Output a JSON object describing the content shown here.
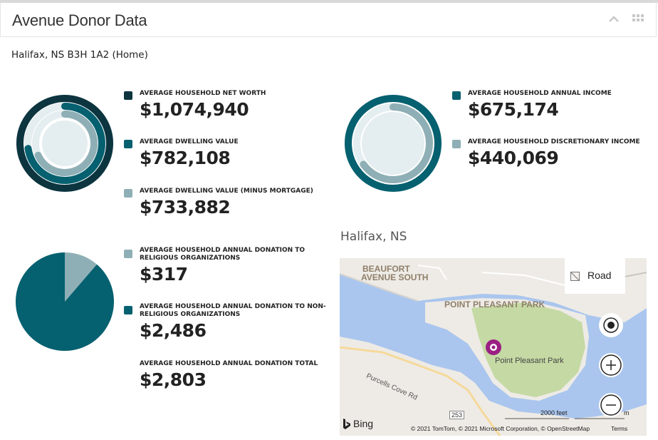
{
  "header": {
    "title": "Avenue Donor Data",
    "collapse_icon": "chevron-up-icon",
    "grid_icon": "grid-icon"
  },
  "address": "Halifax, NS B3H 1A2 (Home)",
  "colors": {
    "dark_teal": "#0c3540",
    "teal": "#05606f",
    "light_teal": "#8fafb6",
    "pale": "#e4edef"
  },
  "wealth": {
    "net_worth": {
      "label": "AVERAGE HOUSEHOLD NET WORTH",
      "value": "$1,074,940"
    },
    "dwelling": {
      "label": "AVERAGE DWELLING VALUE",
      "value": "$782,108"
    },
    "dwelling_minus": {
      "label": "AVERAGE DWELLING VALUE (MINUS MORTGAGE)",
      "value": "$733,882"
    }
  },
  "income": {
    "annual": {
      "label": "AVERAGE HOUSEHOLD ANNUAL INCOME",
      "value": "$675,174"
    },
    "discretionary": {
      "label": "AVERAGE HOUSEHOLD DISCRETIONARY INCOME",
      "value": "$440,069"
    }
  },
  "donations": {
    "religious": {
      "label_line1": "AVERAGE HOUSEHOLD ANNUAL DONATION TO",
      "label_line2": "RELIGIOUS ORGANIZATIONS",
      "value": "$317"
    },
    "non_religious": {
      "label_line1": "AVERAGE HOUSEHOLD ANNUAL DONATION TO NON-",
      "label_line2": "RELIGIOUS ORGANIZATIONS",
      "value": "$2,486"
    },
    "total": {
      "label": "AVERAGE HOUSEHOLD ANNUAL DONATION TOTAL",
      "value": "$2,803"
    }
  },
  "chart_data": [
    {
      "type": "radial-bar",
      "series": [
        {
          "name": "AVERAGE HOUSEHOLD NET WORTH",
          "value": 1074940
        },
        {
          "name": "AVERAGE DWELLING VALUE",
          "value": 782108
        },
        {
          "name": "AVERAGE DWELLING VALUE (MINUS MORTGAGE)",
          "value": 733882
        }
      ],
      "max": 1074940
    },
    {
      "type": "radial-bar",
      "series": [
        {
          "name": "AVERAGE HOUSEHOLD ANNUAL INCOME",
          "value": 675174
        },
        {
          "name": "AVERAGE HOUSEHOLD DISCRETIONARY INCOME",
          "value": 440069
        }
      ],
      "max": 675174
    },
    {
      "type": "pie",
      "series": [
        {
          "name": "AVERAGE HOUSEHOLD ANNUAL DONATION TO RELIGIOUS ORGANIZATIONS",
          "value": 317
        },
        {
          "name": "AVERAGE HOUSEHOLD ANNUAL DONATION TO NON-RELIGIOUS ORGANIZATIONS",
          "value": 2486
        }
      ]
    }
  ],
  "map": {
    "title": "Halifax, NS",
    "road_button": "Road",
    "labels": {
      "beaufort_1": "BEAUFORT",
      "beaufort_2": "AVENUE SOUTH",
      "park_area": "POINT PLEASANT PARK",
      "park_pin": "Point Pleasant Park",
      "purcells": "Purcells Cove Rd",
      "route": "253"
    },
    "scale": "2000 feet",
    "scale_unit": "m",
    "bing": "Bing",
    "attribution": "© 2021 TomTom, © 2021 Microsoft Corporation, © OpenStreetMap",
    "terms": "Terms"
  }
}
